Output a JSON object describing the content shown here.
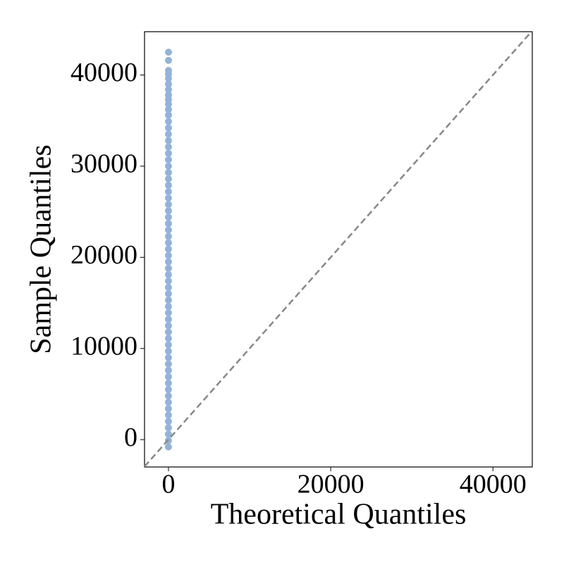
{
  "chart_data": {
    "type": "scatter",
    "xlabel": "Theoretical Quantiles",
    "ylabel": "Sample Quantiles",
    "xlim": [
      -2950,
      44850
    ],
    "ylim": [
      -3000,
      44750
    ],
    "xticks": [
      0,
      20000,
      40000
    ],
    "yticks": [
      0,
      10000,
      20000,
      30000,
      40000
    ],
    "color": "#93b3d8",
    "reference_line": {
      "color": "#888888",
      "style": "dashed"
    },
    "x": [
      -3.15,
      -3.05,
      -2.95,
      -2.85,
      -2.75,
      -2.65,
      -2.55,
      -2.45,
      -2.35,
      -2.25,
      -2.15,
      -2.05,
      -1.95,
      -1.85,
      -1.75,
      -1.65,
      -1.55,
      -1.45,
      -1.35,
      -1.25,
      -1.15,
      -1.05,
      -0.95,
      -0.85,
      -0.75,
      -0.65,
      -0.55,
      -0.45,
      -0.35,
      -0.25,
      -0.15,
      -0.05,
      0.05,
      0.15,
      0.25,
      0.35,
      0.45,
      0.55,
      0.65,
      0.75,
      0.85,
      0.95,
      1.05,
      1.15,
      1.25,
      1.35,
      1.45,
      1.55,
      1.65,
      1.75,
      1.85,
      1.95,
      2.05,
      2.15,
      2.25,
      2.35,
      2.45,
      2.55,
      2.65,
      2.75,
      2.85,
      2.95,
      3.05,
      3.15
    ],
    "values": [
      -800,
      -100,
      600,
      1300,
      2000,
      2700,
      3400,
      4100,
      4800,
      5500,
      6200,
      6900,
      7600,
      8300,
      9000,
      9700,
      10400,
      11100,
      11800,
      12500,
      13200,
      13900,
      14600,
      15300,
      16000,
      16700,
      17400,
      18100,
      18800,
      19500,
      20200,
      20900,
      21600,
      22300,
      23000,
      23700,
      24400,
      25100,
      25800,
      26500,
      27200,
      27900,
      28600,
      29300,
      30000,
      30700,
      31400,
      32100,
      32800,
      33500,
      34200,
      34900,
      35600,
      36200,
      36800,
      37300,
      37800,
      38400,
      39000,
      39600,
      40100,
      40500,
      41600,
      42500
    ]
  }
}
